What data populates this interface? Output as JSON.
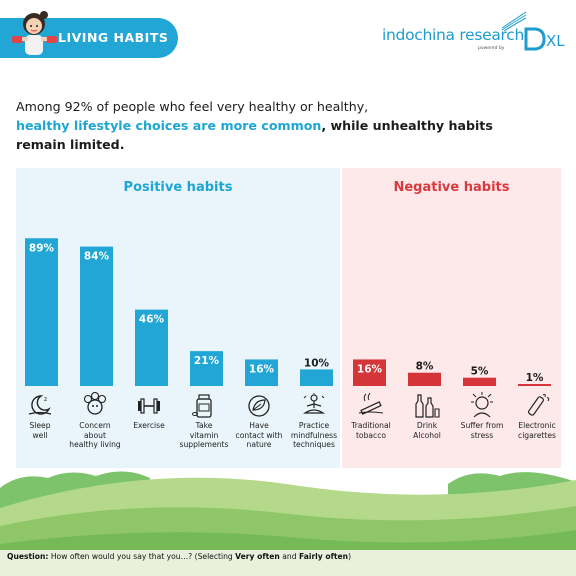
{
  "header": {
    "section_label": "LIVING HABITS"
  },
  "brand": {
    "name": "indochina research",
    "powered_by": "powered by",
    "dxl": "XL"
  },
  "intro": {
    "part1": "Among 92% of people who feel very healthy or healthy,",
    "highlight": "healthy lifestyle choices are more common",
    "part2": ", while unhealthy habits remain limited."
  },
  "colors": {
    "positive": "#21a6d6",
    "negative": "#d43538",
    "positive_panel": "#e9f5fa",
    "negative_panel": "#fde9ea"
  },
  "chart_data": {
    "type": "bar",
    "unit": "%",
    "groups": [
      {
        "name": "Positive habits",
        "categories": [
          "Sleep well",
          "Concern about healthy living",
          "Exercise",
          "Take vitamin supplements",
          "Have contact with nature",
          "Practice mindfulness techniques"
        ],
        "values": [
          89,
          84,
          46,
          21,
          16,
          10
        ],
        "labels": [
          "89%",
          "84%",
          "46%",
          "21%",
          "16%",
          "10%"
        ],
        "icons": [
          "moon-sleep-icon",
          "healthy-living-icon",
          "dumbbell-icon",
          "vitamin-bottle-icon",
          "leaf-icon",
          "meditation-icon"
        ]
      },
      {
        "name": "Negative habits",
        "categories": [
          "Traditional tobacco",
          "Drink Alcohol",
          "Suffer from stress",
          "Electronic cigarettes"
        ],
        "values": [
          16,
          8,
          5,
          1
        ],
        "labels": [
          "16%",
          "8%",
          "5%",
          "1%"
        ],
        "icons": [
          "cigarette-icon",
          "bottles-icon",
          "stress-icon",
          "e-cigarette-icon"
        ]
      }
    ],
    "ylim": [
      0,
      100
    ]
  },
  "labels": {
    "pos": [
      [
        "Sleep",
        "well"
      ],
      [
        "Concern",
        "about",
        "healthy living"
      ],
      [
        "Exercise"
      ],
      [
        "Take",
        "vitamin",
        "supplements"
      ],
      [
        "Have",
        "contact with",
        "nature"
      ],
      [
        "Practice",
        "mindfulness",
        "techniques"
      ]
    ],
    "neg": [
      [
        "Traditional",
        "tobacco"
      ],
      [
        "Drink",
        "Alcohol"
      ],
      [
        "Suffer from",
        "stress"
      ],
      [
        "Electronic",
        "cigarettes"
      ]
    ]
  },
  "footnote": {
    "q_label": "Question:",
    "q_text": " How often would you say that you…? (Selecting ",
    "opt1": "Very often",
    "and": " and ",
    "opt2": "Fairly often",
    "close": ")"
  }
}
